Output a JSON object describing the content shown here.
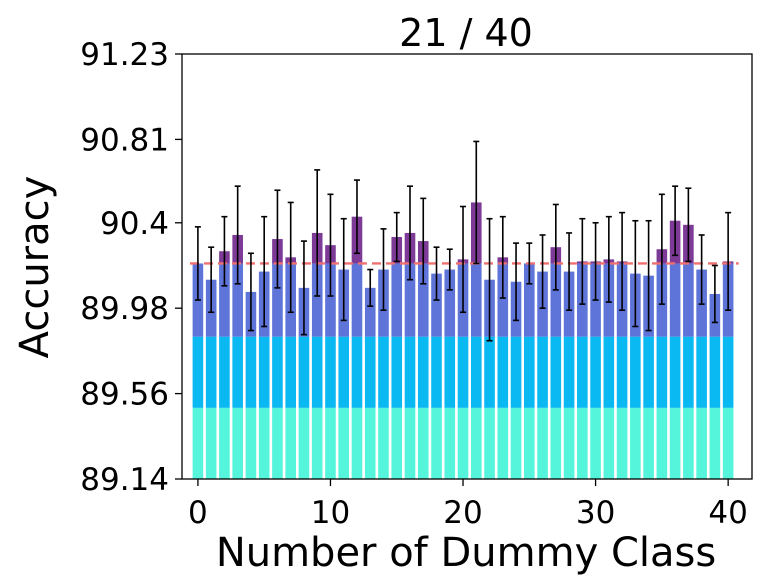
{
  "chart_data": {
    "type": "bar",
    "title": "21 / 40",
    "xlabel": "Number of Dummy Class",
    "ylabel": "Accuracy",
    "xlim": [
      -1.2,
      41.8
    ],
    "ylim": [
      89.14,
      91.23
    ],
    "x_ticks": [
      0,
      10,
      20,
      30,
      40
    ],
    "x_tick_labels": [
      "0",
      "10",
      "20",
      "30",
      "40"
    ],
    "y_ticks": [
      89.14,
      89.56,
      89.98,
      90.4,
      90.81,
      91.23
    ],
    "y_tick_labels": [
      "89.14",
      "89.56",
      "89.98",
      "90.4",
      "90.81",
      "91.23"
    ],
    "reference_line": 90.2,
    "bands": [
      {
        "upper": 89.49,
        "color": "#55f5dc"
      },
      {
        "upper": 89.84,
        "color": "#0bb9f2"
      },
      {
        "upper": 90.2,
        "color": "#5e74d8"
      },
      {
        "upper": 91.23,
        "color": "#7d3a96"
      }
    ],
    "x": [
      0,
      1,
      2,
      3,
      4,
      5,
      6,
      7,
      8,
      9,
      10,
      11,
      12,
      13,
      14,
      15,
      16,
      17,
      18,
      19,
      20,
      21,
      22,
      23,
      24,
      25,
      26,
      27,
      28,
      29,
      30,
      31,
      32,
      33,
      34,
      35,
      36,
      37,
      38,
      39,
      40
    ],
    "values": [
      90.2,
      90.12,
      90.26,
      90.34,
      90.06,
      90.16,
      90.32,
      90.23,
      90.08,
      90.35,
      90.29,
      90.17,
      90.43,
      90.08,
      90.17,
      90.33,
      90.35,
      90.31,
      90.15,
      90.17,
      90.22,
      90.5,
      90.12,
      90.23,
      90.11,
      90.2,
      90.16,
      90.28,
      90.16,
      90.21,
      90.21,
      90.22,
      90.21,
      90.15,
      90.14,
      90.27,
      90.41,
      90.39,
      90.17,
      90.05,
      90.21
    ],
    "errors": [
      0.18,
      0.16,
      0.17,
      0.24,
      0.19,
      0.27,
      0.24,
      0.27,
      0.23,
      0.31,
      0.25,
      0.25,
      0.18,
      0.09,
      0.2,
      0.12,
      0.23,
      0.21,
      0.13,
      0.1,
      0.26,
      0.3,
      0.3,
      0.2,
      0.19,
      0.1,
      0.18,
      0.21,
      0.19,
      0.21,
      0.19,
      0.21,
      0.24,
      0.26,
      0.27,
      0.27,
      0.17,
      0.18,
      0.17,
      0.14,
      0.24
    ]
  }
}
